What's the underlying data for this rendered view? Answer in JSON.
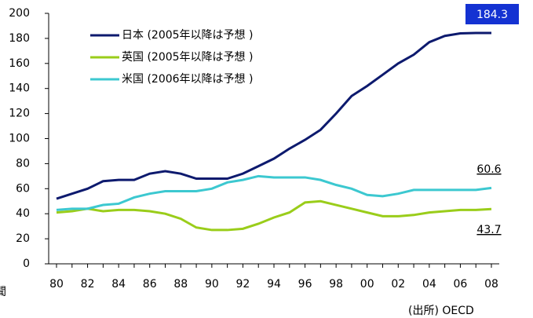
{
  "chart_data": {
    "type": "line",
    "categories": [
      "80",
      null,
      "82",
      null,
      "84",
      null,
      "86",
      null,
      "88",
      null,
      "90",
      null,
      "92",
      null,
      "94",
      null,
      "96",
      null,
      "98",
      null,
      "00",
      null,
      "02",
      null,
      "04",
      null,
      "06",
      null,
      "08"
    ],
    "series": [
      {
        "name": "日本 (2005年以降は予想 )",
        "color": "#0d1a6e",
        "values": [
          52,
          56,
          60,
          66,
          67,
          67,
          72,
          74,
          72,
          68,
          68,
          68,
          72,
          78,
          84,
          92,
          99,
          107,
          120,
          134,
          142,
          151,
          160,
          167,
          177,
          182,
          184,
          184.3,
          184.3
        ]
      },
      {
        "name": "英国 (2005年以降は予想 )",
        "color": "#9acd1a",
        "values": [
          41,
          42,
          44,
          42,
          43,
          43,
          42,
          40,
          36,
          29,
          27,
          27,
          28,
          32,
          37,
          41,
          49,
          50,
          47,
          44,
          41,
          38,
          38,
          39,
          41,
          42,
          43,
          43,
          43.7
        ]
      },
      {
        "name": "米国 (2006年以降は予想 )",
        "color": "#3cc8d0",
        "values": [
          43,
          44,
          44,
          47,
          48,
          53,
          56,
          58,
          58,
          58,
          60,
          65,
          67,
          70,
          69,
          69,
          69,
          67,
          63,
          60,
          55,
          54,
          56,
          59,
          59,
          59,
          59,
          59,
          60.6
        ]
      }
    ],
    "ylim": [
      0,
      200
    ],
    "yticks": [
      0,
      20,
      40,
      60,
      80,
      100,
      120,
      140,
      160,
      180,
      200
    ],
    "source": "(出所) OECD",
    "note": "聞"
  }
}
